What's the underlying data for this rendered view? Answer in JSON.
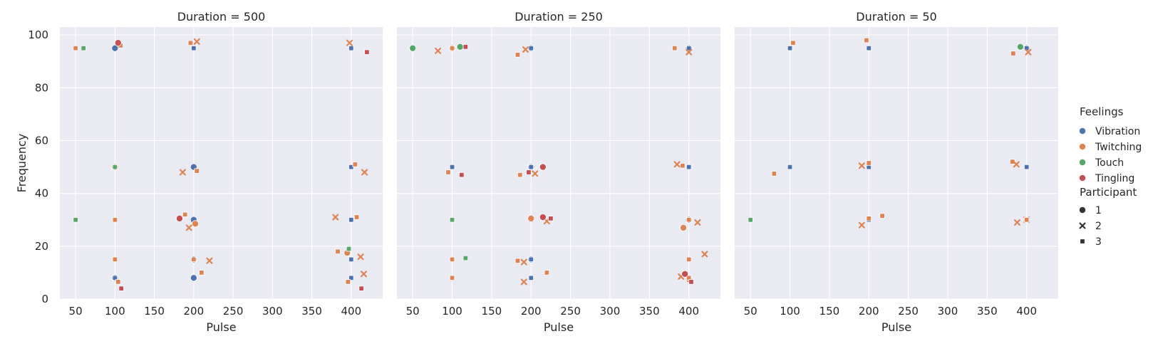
{
  "chart_data": {
    "type": "scatter",
    "x_label": "Pulse",
    "y_label": "Frequency",
    "xlim": [
      30,
      440
    ],
    "ylim": [
      0,
      103
    ],
    "x_ticks": [
      50,
      100,
      150,
      200,
      250,
      300,
      350,
      400
    ],
    "y_ticks": [
      0,
      20,
      40,
      60,
      80,
      100
    ],
    "grid": true,
    "legend_position": "right",
    "hue": {
      "title": "Feelings",
      "entries": [
        {
          "label": "Vibration",
          "color": "#4c72b0"
        },
        {
          "label": "Twitching",
          "color": "#dd8452"
        },
        {
          "label": "Touch",
          "color": "#55a868"
        },
        {
          "label": "Tingling",
          "color": "#c44e52"
        }
      ]
    },
    "style": {
      "title": "Participant",
      "entries": [
        {
          "label": "1",
          "marker": "circle"
        },
        {
          "label": "2",
          "marker": "x"
        },
        {
          "label": "3",
          "marker": "square"
        }
      ]
    },
    "panels": [
      {
        "title": "Duration = 500",
        "points": [
          {
            "x": 100,
            "y": 95,
            "feeling": "Vibration",
            "participant": "3"
          },
          {
            "x": 100,
            "y": 95,
            "feeling": "Vibration",
            "participant": "1"
          },
          {
            "x": 200,
            "y": 95,
            "feeling": "Vibration",
            "participant": "3"
          },
          {
            "x": 400,
            "y": 95,
            "feeling": "Vibration",
            "participant": "3"
          },
          {
            "x": 200,
            "y": 50,
            "feeling": "Vibration",
            "participant": "3"
          },
          {
            "x": 200,
            "y": 50,
            "feeling": "Vibration",
            "participant": "1"
          },
          {
            "x": 400,
            "y": 50,
            "feeling": "Vibration",
            "participant": "3"
          },
          {
            "x": 200,
            "y": 30,
            "feeling": "Vibration",
            "participant": "3"
          },
          {
            "x": 200,
            "y": 30,
            "feeling": "Vibration",
            "participant": "1"
          },
          {
            "x": 400,
            "y": 30,
            "feeling": "Vibration",
            "participant": "3"
          },
          {
            "x": 200,
            "y": 15,
            "feeling": "Vibration",
            "participant": "1"
          },
          {
            "x": 400,
            "y": 15,
            "feeling": "Vibration",
            "participant": "3"
          },
          {
            "x": 100,
            "y": 8,
            "feeling": "Vibration",
            "participant": "1"
          },
          {
            "x": 100,
            "y": 8,
            "feeling": "Vibration",
            "participant": "3"
          },
          {
            "x": 200,
            "y": 8,
            "feeling": "Vibration",
            "participant": "3"
          },
          {
            "x": 200,
            "y": 8,
            "feeling": "Vibration",
            "participant": "1"
          },
          {
            "x": 400,
            "y": 8,
            "feeling": "Vibration",
            "participant": "3"
          },
          {
            "x": 50,
            "y": 95,
            "feeling": "Twitching",
            "participant": "3"
          },
          {
            "x": 107,
            "y": 96,
            "feeling": "Twitching",
            "participant": "3"
          },
          {
            "x": 196,
            "y": 97,
            "feeling": "Twitching",
            "participant": "3"
          },
          {
            "x": 204,
            "y": 97.5,
            "feeling": "Twitching",
            "participant": "2"
          },
          {
            "x": 398,
            "y": 97,
            "feeling": "Twitching",
            "participant": "2"
          },
          {
            "x": 100,
            "y": 50,
            "feeling": "Twitching",
            "participant": "1"
          },
          {
            "x": 186,
            "y": 48,
            "feeling": "Twitching",
            "participant": "2"
          },
          {
            "x": 204,
            "y": 48.5,
            "feeling": "Twitching",
            "participant": "3"
          },
          {
            "x": 405,
            "y": 51,
            "feeling": "Twitching",
            "participant": "3"
          },
          {
            "x": 417,
            "y": 48,
            "feeling": "Twitching",
            "participant": "2"
          },
          {
            "x": 100,
            "y": 30,
            "feeling": "Twitching",
            "participant": "3"
          },
          {
            "x": 189,
            "y": 32,
            "feeling": "Twitching",
            "participant": "3"
          },
          {
            "x": 202,
            "y": 28.5,
            "feeling": "Twitching",
            "participant": "1"
          },
          {
            "x": 194,
            "y": 27,
            "feeling": "Twitching",
            "participant": "2"
          },
          {
            "x": 380,
            "y": 31,
            "feeling": "Twitching",
            "participant": "2"
          },
          {
            "x": 407,
            "y": 31,
            "feeling": "Twitching",
            "participant": "3"
          },
          {
            "x": 100,
            "y": 15,
            "feeling": "Twitching",
            "participant": "3"
          },
          {
            "x": 200,
            "y": 15,
            "feeling": "Twitching",
            "participant": "3"
          },
          {
            "x": 220,
            "y": 14.5,
            "feeling": "Twitching",
            "participant": "2"
          },
          {
            "x": 383,
            "y": 18,
            "feeling": "Twitching",
            "participant": "3"
          },
          {
            "x": 395,
            "y": 17.5,
            "feeling": "Twitching",
            "participant": "1"
          },
          {
            "x": 412,
            "y": 16,
            "feeling": "Twitching",
            "participant": "2"
          },
          {
            "x": 210,
            "y": 10,
            "feeling": "Twitching",
            "participant": "3"
          },
          {
            "x": 104,
            "y": 6.5,
            "feeling": "Twitching",
            "participant": "3"
          },
          {
            "x": 396,
            "y": 6.5,
            "feeling": "Twitching",
            "participant": "3"
          },
          {
            "x": 416,
            "y": 9.5,
            "feeling": "Twitching",
            "participant": "2"
          },
          {
            "x": 60,
            "y": 95,
            "feeling": "Touch",
            "participant": "3"
          },
          {
            "x": 100,
            "y": 50,
            "feeling": "Touch",
            "participant": "3"
          },
          {
            "x": 50,
            "y": 30,
            "feeling": "Touch",
            "participant": "3"
          },
          {
            "x": 397,
            "y": 19,
            "feeling": "Touch",
            "participant": "3"
          },
          {
            "x": 104,
            "y": 97,
            "feeling": "Tingling",
            "participant": "1"
          },
          {
            "x": 420,
            "y": 93.5,
            "feeling": "Tingling",
            "participant": "3"
          },
          {
            "x": 182,
            "y": 30.5,
            "feeling": "Tingling",
            "participant": "1"
          },
          {
            "x": 108,
            "y": 4,
            "feeling": "Tingling",
            "participant": "3"
          },
          {
            "x": 413,
            "y": 4,
            "feeling": "Tingling",
            "participant": "3"
          }
        ]
      },
      {
        "title": "Duration = 250",
        "points": [
          {
            "x": 200,
            "y": 95,
            "feeling": "Vibration",
            "participant": "1"
          },
          {
            "x": 200,
            "y": 95,
            "feeling": "Vibration",
            "participant": "3"
          },
          {
            "x": 400,
            "y": 95,
            "feeling": "Vibration",
            "participant": "1"
          },
          {
            "x": 400,
            "y": 95,
            "feeling": "Vibration",
            "participant": "3"
          },
          {
            "x": 100,
            "y": 50,
            "feeling": "Vibration",
            "participant": "3"
          },
          {
            "x": 200,
            "y": 50,
            "feeling": "Vibration",
            "participant": "1"
          },
          {
            "x": 200,
            "y": 50,
            "feeling": "Vibration",
            "participant": "3"
          },
          {
            "x": 400,
            "y": 50,
            "feeling": "Vibration",
            "participant": "3"
          },
          {
            "x": 200,
            "y": 30,
            "feeling": "Vibration",
            "participant": "3"
          },
          {
            "x": 400,
            "y": 30,
            "feeling": "Vibration",
            "participant": "1"
          },
          {
            "x": 400,
            "y": 30,
            "feeling": "Vibration",
            "participant": "3"
          },
          {
            "x": 200,
            "y": 15,
            "feeling": "Vibration",
            "participant": "1"
          },
          {
            "x": 200,
            "y": 15,
            "feeling": "Vibration",
            "participant": "3"
          },
          {
            "x": 200,
            "y": 8,
            "feeling": "Vibration",
            "participant": "3"
          },
          {
            "x": 100,
            "y": 95,
            "feeling": "Twitching",
            "participant": "1"
          },
          {
            "x": 100,
            "y": 95,
            "feeling": "Twitching",
            "participant": "3"
          },
          {
            "x": 82,
            "y": 94,
            "feeling": "Twitching",
            "participant": "2"
          },
          {
            "x": 183,
            "y": 92.5,
            "feeling": "Twitching",
            "participant": "3"
          },
          {
            "x": 193,
            "y": 94.5,
            "feeling": "Twitching",
            "participant": "2"
          },
          {
            "x": 382,
            "y": 95,
            "feeling": "Twitching",
            "participant": "3"
          },
          {
            "x": 400,
            "y": 93.5,
            "feeling": "Twitching",
            "participant": "2"
          },
          {
            "x": 95,
            "y": 48,
            "feeling": "Twitching",
            "participant": "3"
          },
          {
            "x": 186,
            "y": 47,
            "feeling": "Twitching",
            "participant": "3"
          },
          {
            "x": 205,
            "y": 47.5,
            "feeling": "Twitching",
            "participant": "2"
          },
          {
            "x": 385,
            "y": 51,
            "feeling": "Twitching",
            "participant": "2"
          },
          {
            "x": 392,
            "y": 50.5,
            "feeling": "Twitching",
            "participant": "3"
          },
          {
            "x": 200,
            "y": 30.5,
            "feeling": "Twitching",
            "participant": "1"
          },
          {
            "x": 220,
            "y": 29.5,
            "feeling": "Twitching",
            "participant": "2"
          },
          {
            "x": 393,
            "y": 27,
            "feeling": "Twitching",
            "participant": "1"
          },
          {
            "x": 400,
            "y": 30,
            "feeling": "Twitching",
            "participant": "3"
          },
          {
            "x": 411,
            "y": 29,
            "feeling": "Twitching",
            "participant": "2"
          },
          {
            "x": 100,
            "y": 15,
            "feeling": "Twitching",
            "participant": "3"
          },
          {
            "x": 183,
            "y": 14.5,
            "feeling": "Twitching",
            "participant": "3"
          },
          {
            "x": 191,
            "y": 14,
            "feeling": "Twitching",
            "participant": "2"
          },
          {
            "x": 400,
            "y": 15,
            "feeling": "Twitching",
            "participant": "3"
          },
          {
            "x": 420,
            "y": 17,
            "feeling": "Twitching",
            "participant": "2"
          },
          {
            "x": 100,
            "y": 8,
            "feeling": "Twitching",
            "participant": "3"
          },
          {
            "x": 191,
            "y": 6.5,
            "feeling": "Twitching",
            "participant": "2"
          },
          {
            "x": 220,
            "y": 10,
            "feeling": "Twitching",
            "participant": "3"
          },
          {
            "x": 400,
            "y": 7.5,
            "feeling": "Twitching",
            "participant": "1"
          },
          {
            "x": 400,
            "y": 8,
            "feeling": "Twitching",
            "participant": "3"
          },
          {
            "x": 390,
            "y": 8.5,
            "feeling": "Twitching",
            "participant": "2"
          },
          {
            "x": 50,
            "y": 95,
            "feeling": "Touch",
            "participant": "1"
          },
          {
            "x": 110,
            "y": 95.5,
            "feeling": "Touch",
            "participant": "1"
          },
          {
            "x": 100,
            "y": 30,
            "feeling": "Touch",
            "participant": "3"
          },
          {
            "x": 117,
            "y": 15.5,
            "feeling": "Touch",
            "participant": "3"
          },
          {
            "x": 117,
            "y": 95.5,
            "feeling": "Tingling",
            "participant": "3"
          },
          {
            "x": 112,
            "y": 47,
            "feeling": "Tingling",
            "participant": "3"
          },
          {
            "x": 197,
            "y": 48,
            "feeling": "Tingling",
            "participant": "3"
          },
          {
            "x": 215,
            "y": 50,
            "feeling": "Tingling",
            "participant": "1"
          },
          {
            "x": 215,
            "y": 31,
            "feeling": "Tingling",
            "participant": "1"
          },
          {
            "x": 225,
            "y": 30.5,
            "feeling": "Tingling",
            "participant": "3"
          },
          {
            "x": 395,
            "y": 9.5,
            "feeling": "Tingling",
            "participant": "1"
          },
          {
            "x": 403,
            "y": 6.5,
            "feeling": "Tingling",
            "participant": "3"
          }
        ]
      },
      {
        "title": "Duration = 50",
        "points": [
          {
            "x": 100,
            "y": 95,
            "feeling": "Vibration",
            "participant": "3"
          },
          {
            "x": 200,
            "y": 95,
            "feeling": "Vibration",
            "participant": "3"
          },
          {
            "x": 400,
            "y": 95,
            "feeling": "Vibration",
            "participant": "1"
          },
          {
            "x": 400,
            "y": 95,
            "feeling": "Vibration",
            "participant": "3"
          },
          {
            "x": 100,
            "y": 50,
            "feeling": "Vibration",
            "participant": "3"
          },
          {
            "x": 200,
            "y": 50,
            "feeling": "Vibration",
            "participant": "3"
          },
          {
            "x": 400,
            "y": 50,
            "feeling": "Vibration",
            "participant": "3"
          },
          {
            "x": 200,
            "y": 30,
            "feeling": "Vibration",
            "participant": "3"
          },
          {
            "x": 104,
            "y": 97,
            "feeling": "Twitching",
            "participant": "3"
          },
          {
            "x": 197,
            "y": 98,
            "feeling": "Twitching",
            "participant": "3"
          },
          {
            "x": 383,
            "y": 93,
            "feeling": "Twitching",
            "participant": "3"
          },
          {
            "x": 402,
            "y": 93.5,
            "feeling": "Twitching",
            "participant": "2"
          },
          {
            "x": 80,
            "y": 47.5,
            "feeling": "Twitching",
            "participant": "3"
          },
          {
            "x": 191,
            "y": 50.5,
            "feeling": "Twitching",
            "participant": "2"
          },
          {
            "x": 200,
            "y": 51.5,
            "feeling": "Twitching",
            "participant": "3"
          },
          {
            "x": 382,
            "y": 52,
            "feeling": "Twitching",
            "participant": "3"
          },
          {
            "x": 387,
            "y": 51,
            "feeling": "Twitching",
            "participant": "2"
          },
          {
            "x": 200,
            "y": 30.5,
            "feeling": "Twitching",
            "participant": "3"
          },
          {
            "x": 217,
            "y": 31.5,
            "feeling": "Twitching",
            "participant": "3"
          },
          {
            "x": 191,
            "y": 28,
            "feeling": "Twitching",
            "participant": "2"
          },
          {
            "x": 388,
            "y": 29,
            "feeling": "Twitching",
            "participant": "2"
          },
          {
            "x": 400,
            "y": 30,
            "feeling": "Twitching",
            "participant": "2"
          },
          {
            "x": 400,
            "y": 30,
            "feeling": "Twitching",
            "participant": "3"
          },
          {
            "x": 392,
            "y": 95.5,
            "feeling": "Touch",
            "participant": "1"
          },
          {
            "x": 50,
            "y": 30,
            "feeling": "Touch",
            "participant": "3"
          }
        ]
      }
    ]
  }
}
